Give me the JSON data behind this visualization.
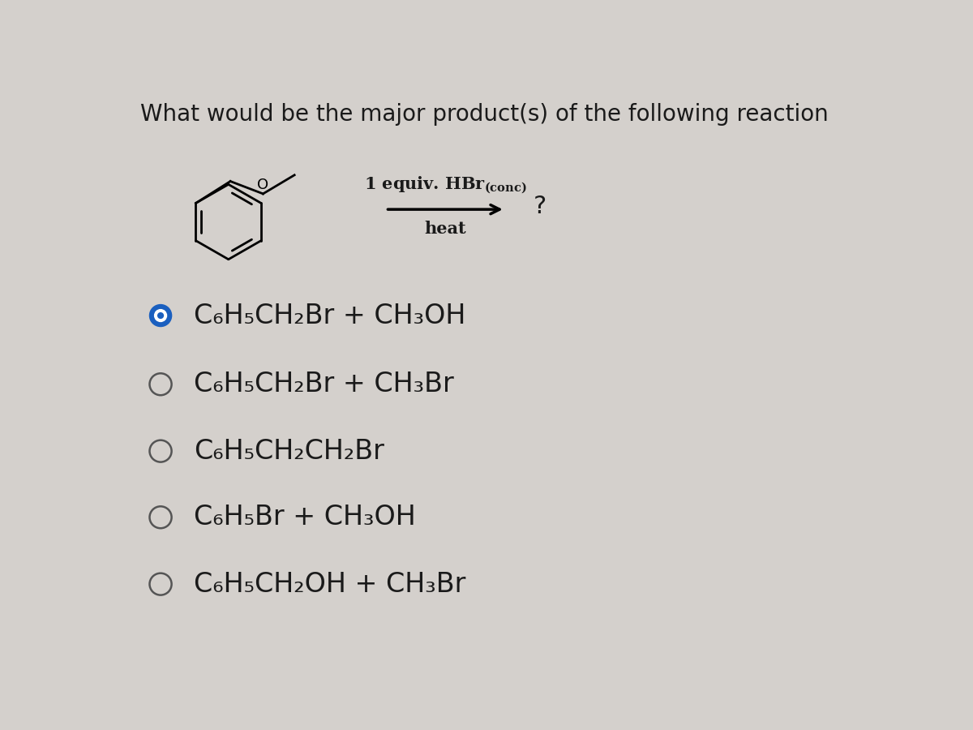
{
  "title": "What would be the major product(s) of the following reaction",
  "background_color": "#d4d0cc",
  "reagent_text": "1 equiv. HBr",
  "reagent_sub": "(conc)",
  "reagent_below": "heat",
  "question_mark": "?",
  "choices": [
    {
      "text": "C₆H₅CH₂Br + CH₃OH",
      "selected": true
    },
    {
      "text": "C₆H₅CH₂Br + CH₃Br",
      "selected": false
    },
    {
      "text": "C₆H₅CH₂CH₂Br",
      "selected": false
    },
    {
      "text": "C₆H₅Br + CH₃OH",
      "selected": false
    },
    {
      "text": "C₆H₅CH₂OH + CH₃Br",
      "selected": false
    }
  ],
  "text_color": "#1a1a1a",
  "selected_fill": "#1a5fbf",
  "selected_border": "#1a5fbf",
  "circle_color": "#555555",
  "title_fontsize": 20,
  "choice_fontsize": 24,
  "reagent_fontsize": 15,
  "heat_fontsize": 15
}
